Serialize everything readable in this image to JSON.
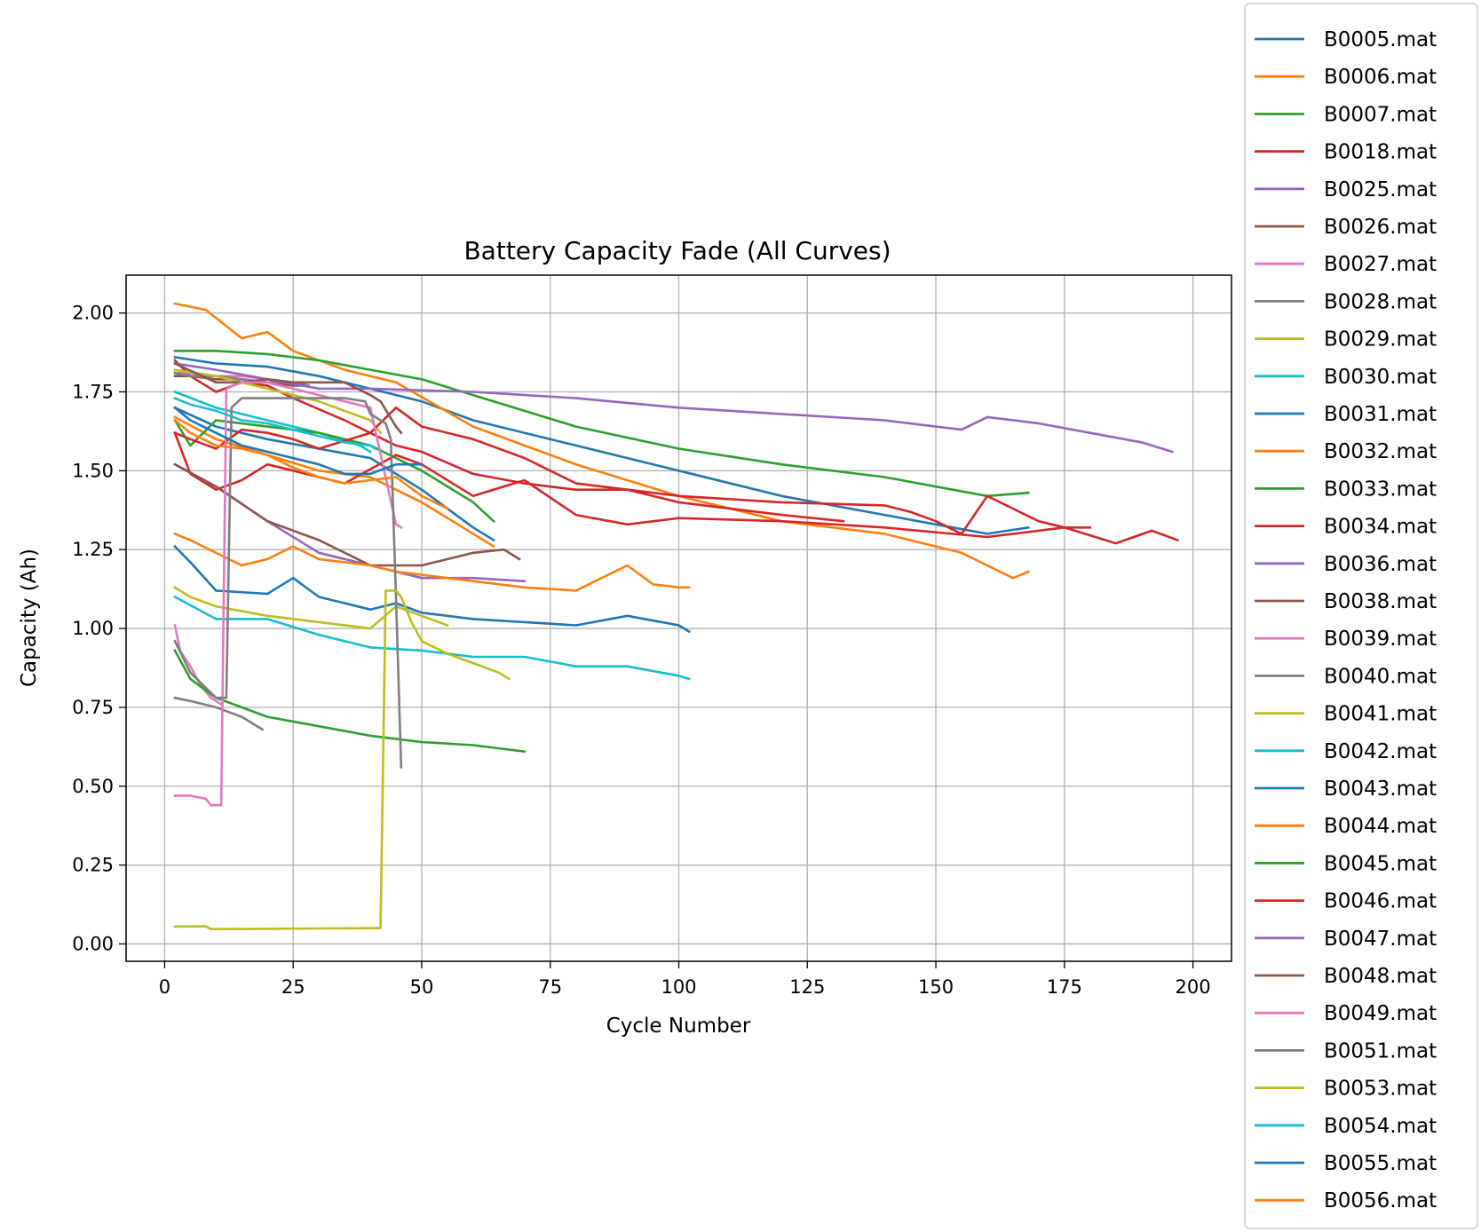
{
  "chart_data": {
    "type": "line",
    "title": "Battery Capacity Fade (All Curves)",
    "xlabel": "Cycle Number",
    "ylabel": "Capacity (Ah)",
    "xlim": [
      -7.5,
      207.5
    ],
    "ylim": [
      -0.055,
      2.12
    ],
    "xticks": [
      0,
      25,
      50,
      75,
      100,
      125,
      150,
      175,
      200
    ],
    "yticks": [
      0.0,
      0.25,
      0.5,
      0.75,
      1.0,
      1.25,
      1.5,
      1.75,
      2.0
    ],
    "xtick_labels": [
      "0",
      "25",
      "50",
      "75",
      "100",
      "125",
      "150",
      "175",
      "200"
    ],
    "ytick_labels": [
      "0.00",
      "0.25",
      "0.50",
      "0.75",
      "1.00",
      "1.25",
      "1.50",
      "1.75",
      "2.00"
    ],
    "grid": true,
    "legend_position": "outside-right",
    "series": [
      {
        "name": "B0005.mat",
        "color": "#1f77b4",
        "x": [
          2,
          10,
          20,
          30,
          40,
          50,
          60,
          80,
          100,
          120,
          140,
          150,
          160,
          168
        ],
        "y": [
          1.86,
          1.84,
          1.83,
          1.8,
          1.76,
          1.72,
          1.66,
          1.58,
          1.5,
          1.42,
          1.36,
          1.33,
          1.3,
          1.32
        ]
      },
      {
        "name": "B0006.mat",
        "color": "#ff7f0e",
        "x": [
          2,
          8,
          15,
          20,
          25,
          35,
          45,
          60,
          80,
          100,
          120,
          140,
          155,
          165,
          168
        ],
        "y": [
          2.03,
          2.01,
          1.92,
          1.94,
          1.88,
          1.82,
          1.78,
          1.64,
          1.52,
          1.42,
          1.34,
          1.3,
          1.24,
          1.16,
          1.18
        ]
      },
      {
        "name": "B0007.mat",
        "color": "#2ca02c",
        "x": [
          2,
          10,
          20,
          30,
          40,
          50,
          60,
          80,
          100,
          120,
          140,
          160,
          168
        ],
        "y": [
          1.88,
          1.88,
          1.87,
          1.85,
          1.82,
          1.79,
          1.74,
          1.64,
          1.57,
          1.52,
          1.48,
          1.42,
          1.43
        ]
      },
      {
        "name": "B0018.mat",
        "color": "#d62728",
        "x": [
          2,
          5,
          10,
          15,
          20,
          25,
          35,
          45,
          50,
          60,
          70,
          80,
          90,
          100,
          120,
          132
        ],
        "y": [
          1.85,
          1.8,
          1.75,
          1.78,
          1.77,
          1.73,
          1.66,
          1.58,
          1.56,
          1.49,
          1.46,
          1.44,
          1.44,
          1.4,
          1.36,
          1.34
        ]
      },
      {
        "name": "B0025.mat",
        "color": "#9467bd",
        "x": [
          2,
          5,
          10,
          15,
          20,
          25,
          28
        ],
        "y": [
          1.81,
          1.8,
          1.8,
          1.79,
          1.78,
          1.78,
          1.77
        ]
      },
      {
        "name": "B0026.mat",
        "color": "#8c564b",
        "x": [
          2,
          5,
          10,
          15,
          20,
          25,
          28
        ],
        "y": [
          1.8,
          1.8,
          1.79,
          1.79,
          1.78,
          1.77,
          1.77
        ]
      },
      {
        "name": "B0027.mat",
        "color": "#e377c2",
        "x": [
          2,
          5,
          10,
          15,
          20,
          25,
          28
        ],
        "y": [
          1.81,
          1.81,
          1.8,
          1.8,
          1.79,
          1.78,
          1.77
        ]
      },
      {
        "name": "B0028.mat",
        "color": "#7f7f7f",
        "x": [
          2,
          5,
          10,
          15,
          20,
          25,
          28
        ],
        "y": [
          1.81,
          1.8,
          1.8,
          1.79,
          1.78,
          1.78,
          1.77
        ]
      },
      {
        "name": "B0029.mat",
        "color": "#bcbd22",
        "x": [
          2,
          10,
          20,
          30,
          40,
          42
        ],
        "y": [
          1.82,
          1.8,
          1.76,
          1.72,
          1.66,
          1.62
        ]
      },
      {
        "name": "B0030.mat",
        "color": "#17becf",
        "x": [
          2,
          10,
          20,
          30,
          38,
          40
        ],
        "y": [
          1.75,
          1.7,
          1.66,
          1.62,
          1.58,
          1.56
        ]
      },
      {
        "name": "B0031.mat",
        "color": "#1f77b4",
        "x": [
          2,
          10,
          20,
          30,
          40,
          50,
          60,
          64
        ],
        "y": [
          1.7,
          1.64,
          1.6,
          1.57,
          1.54,
          1.44,
          1.32,
          1.28
        ]
      },
      {
        "name": "B0032.mat",
        "color": "#ff7f0e",
        "x": [
          2,
          10,
          20,
          30,
          40,
          50,
          60,
          64
        ],
        "y": [
          1.67,
          1.6,
          1.55,
          1.5,
          1.48,
          1.4,
          1.3,
          1.26
        ]
      },
      {
        "name": "B0033.mat",
        "color": "#2ca02c",
        "x": [
          2,
          5,
          10,
          20,
          30,
          40,
          50,
          60,
          64
        ],
        "y": [
          1.66,
          1.58,
          1.66,
          1.64,
          1.62,
          1.58,
          1.5,
          1.4,
          1.34
        ]
      },
      {
        "name": "B0034.mat",
        "color": "#d62728",
        "x": [
          2,
          5,
          10,
          15,
          20,
          25,
          35,
          45,
          50,
          60,
          70,
          80,
          90,
          100,
          120,
          140,
          160,
          175,
          185,
          192,
          197
        ],
        "y": [
          1.62,
          1.49,
          1.44,
          1.47,
          1.52,
          1.5,
          1.46,
          1.55,
          1.52,
          1.42,
          1.47,
          1.36,
          1.33,
          1.35,
          1.34,
          1.32,
          1.29,
          1.32,
          1.27,
          1.31,
          1.28
        ]
      },
      {
        "name": "B0036.mat",
        "color": "#9467bd",
        "x": [
          2,
          10,
          20,
          30,
          40,
          50,
          60,
          70
        ],
        "y": [
          1.52,
          1.45,
          1.34,
          1.24,
          1.2,
          1.16,
          1.16,
          1.15
        ]
      },
      {
        "name": "B0038.mat",
        "color": "#8c564b",
        "x": [
          2,
          10,
          20,
          30,
          40,
          50,
          60,
          66,
          69
        ],
        "y": [
          1.52,
          1.45,
          1.34,
          1.28,
          1.2,
          1.2,
          1.24,
          1.25,
          1.22
        ]
      },
      {
        "name": "B0039.mat",
        "color": "#e377c2",
        "x": [
          2,
          3,
          5,
          7,
          9,
          11
        ],
        "y": [
          1.01,
          0.93,
          0.88,
          0.82,
          0.78,
          0.76
        ]
      },
      {
        "name": "B0040.mat",
        "color": "#7f7f7f",
        "x": [
          2,
          5,
          10,
          15,
          19
        ],
        "y": [
          0.78,
          0.77,
          0.75,
          0.72,
          0.68
        ]
      },
      {
        "name": "B0041.mat",
        "color": "#bcbd22",
        "x": [
          2,
          5,
          10,
          20,
          30,
          40,
          45,
          50,
          55
        ],
        "y": [
          1.13,
          1.1,
          1.07,
          1.04,
          1.02,
          1.0,
          1.07,
          1.04,
          1.01
        ]
      },
      {
        "name": "B0042.mat",
        "color": "#17becf",
        "x": [
          2,
          10,
          20,
          30,
          40,
          50,
          60,
          70,
          80,
          90,
          100,
          102
        ],
        "y": [
          1.1,
          1.03,
          1.03,
          0.98,
          0.94,
          0.93,
          0.91,
          0.91,
          0.88,
          0.88,
          0.85,
          0.84
        ]
      },
      {
        "name": "B0043.mat",
        "color": "#1f77b4",
        "x": [
          2,
          5,
          10,
          20,
          25,
          30,
          40,
          45,
          50,
          60,
          70,
          80,
          90,
          100,
          102
        ],
        "y": [
          1.26,
          1.21,
          1.12,
          1.11,
          1.16,
          1.1,
          1.06,
          1.08,
          1.05,
          1.03,
          1.02,
          1.01,
          1.04,
          1.01,
          0.99
        ]
      },
      {
        "name": "B0044.mat",
        "color": "#ff7f0e",
        "x": [
          2,
          5,
          10,
          15,
          20,
          25,
          30,
          40,
          45,
          50,
          60,
          70,
          80,
          90,
          95,
          100,
          102
        ],
        "y": [
          1.3,
          1.28,
          1.24,
          1.2,
          1.22,
          1.26,
          1.22,
          1.2,
          1.18,
          1.17,
          1.15,
          1.13,
          1.12,
          1.2,
          1.14,
          1.13,
          1.13
        ]
      },
      {
        "name": "B0045.mat",
        "color": "#2ca02c",
        "x": [
          2,
          5,
          10,
          20,
          30,
          40,
          50,
          60,
          70
        ],
        "y": [
          0.93,
          0.84,
          0.78,
          0.72,
          0.69,
          0.66,
          0.64,
          0.63,
          0.61
        ]
      },
      {
        "name": "B0046.mat",
        "color": "#d62728",
        "x": [
          2,
          5,
          10,
          15,
          20,
          25,
          30,
          40,
          45,
          50,
          60,
          70,
          80,
          100,
          120,
          140,
          145,
          150,
          155,
          160,
          165,
          170,
          175,
          180
        ],
        "y": [
          1.62,
          1.6,
          1.57,
          1.63,
          1.62,
          1.6,
          1.57,
          1.62,
          1.7,
          1.64,
          1.6,
          1.54,
          1.46,
          1.42,
          1.4,
          1.39,
          1.37,
          1.34,
          1.3,
          1.42,
          1.38,
          1.34,
          1.32,
          1.32
        ]
      },
      {
        "name": "B0047.mat",
        "color": "#9467bd",
        "x": [
          2,
          10,
          20,
          30,
          40,
          60,
          80,
          100,
          120,
          140,
          150,
          155,
          160,
          170,
          180,
          190,
          196
        ],
        "y": [
          1.84,
          1.82,
          1.79,
          1.76,
          1.76,
          1.75,
          1.73,
          1.7,
          1.68,
          1.66,
          1.64,
          1.63,
          1.67,
          1.65,
          1.62,
          1.59,
          1.56
        ]
      },
      {
        "name": "B0048.mat",
        "color": "#8c564b",
        "x": [
          2,
          10,
          15,
          20,
          25,
          30,
          35,
          40,
          42,
          45,
          46
        ],
        "y": [
          1.84,
          1.78,
          1.78,
          1.79,
          1.78,
          1.78,
          1.78,
          1.74,
          1.72,
          1.64,
          1.62
        ]
      },
      {
        "name": "B0049.mat",
        "color": "#e377c2",
        "x": [
          2,
          5,
          8,
          9,
          10,
          11,
          12,
          15,
          20,
          25,
          30,
          40,
          45,
          46
        ],
        "y": [
          0.47,
          0.47,
          0.46,
          0.44,
          0.44,
          0.44,
          1.76,
          1.78,
          1.78,
          1.76,
          1.74,
          1.7,
          1.33,
          1.32
        ]
      },
      {
        "name": "B0051.mat",
        "color": "#7f7f7f",
        "x": [
          2,
          5,
          10,
          11,
          12,
          13,
          15,
          20,
          25,
          30,
          35,
          39,
          40,
          41,
          42,
          43,
          44,
          45,
          46
        ],
        "y": [
          0.96,
          0.86,
          0.78,
          0.78,
          0.78,
          1.7,
          1.73,
          1.73,
          1.73,
          1.73,
          1.73,
          1.72,
          1.68,
          1.67,
          1.66,
          1.65,
          1.6,
          1.1,
          0.56
        ]
      },
      {
        "name": "B0053.mat",
        "color": "#bcbd22",
        "x": [
          2,
          8,
          9,
          10,
          20,
          30,
          40,
          42,
          43,
          44,
          45,
          46,
          48,
          50,
          55,
          60,
          65,
          67
        ],
        "y": [
          0.055,
          0.056,
          0.047,
          0.047,
          0.048,
          0.049,
          0.05,
          0.05,
          1.12,
          1.12,
          1.12,
          1.1,
          1.02,
          0.96,
          0.92,
          0.89,
          0.86,
          0.84
        ]
      },
      {
        "name": "B0054.mat",
        "color": "#17becf",
        "x": [
          2,
          5,
          10,
          15,
          20,
          25,
          30,
          35,
          40,
          41
        ],
        "y": [
          1.73,
          1.71,
          1.69,
          1.66,
          1.65,
          1.63,
          1.61,
          1.59,
          1.58,
          1.57
        ]
      },
      {
        "name": "B0055.mat",
        "color": "#1f77b4",
        "x": [
          2,
          5,
          10,
          15,
          20,
          25,
          30,
          35,
          40,
          45,
          50
        ],
        "y": [
          1.7,
          1.66,
          1.62,
          1.58,
          1.56,
          1.54,
          1.52,
          1.49,
          1.49,
          1.52,
          1.52
        ]
      },
      {
        "name": "B0056.mat",
        "color": "#ff7f0e",
        "x": [
          2,
          5,
          10,
          15,
          20,
          25,
          30,
          35,
          40,
          45,
          50,
          55
        ],
        "y": [
          1.66,
          1.62,
          1.58,
          1.57,
          1.55,
          1.51,
          1.48,
          1.46,
          1.47,
          1.48,
          1.42,
          1.38
        ]
      }
    ]
  }
}
